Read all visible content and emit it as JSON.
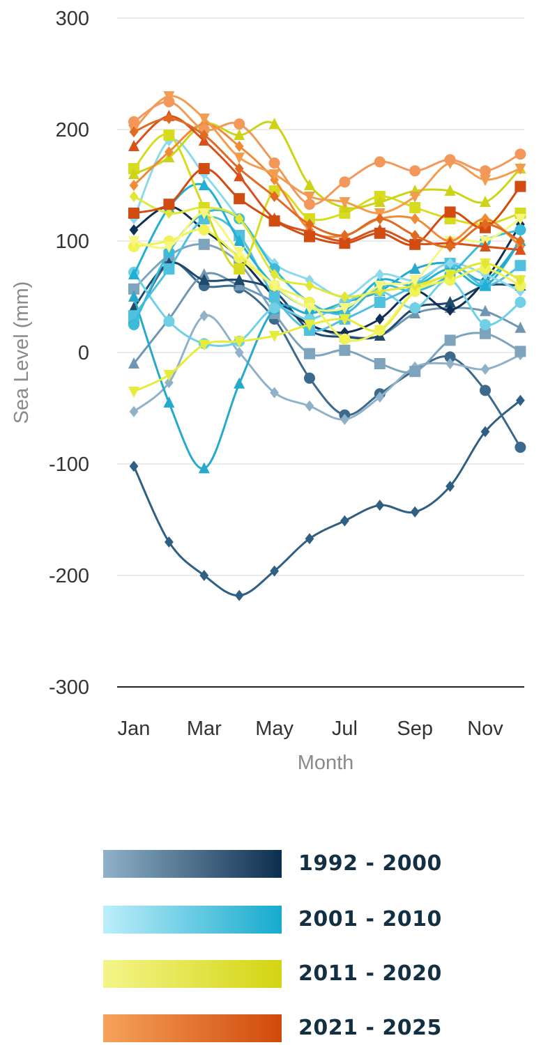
{
  "chart_data": {
    "type": "line",
    "title": "",
    "xlabel": "Month",
    "ylabel": "Sea Level (mm)",
    "ylim": [
      -300,
      300
    ],
    "yticks": [
      "300",
      "200",
      "100",
      "0",
      "-100",
      "-200",
      "-300"
    ],
    "xticks": [
      "Jan",
      "Mar",
      "May",
      "Jul",
      "Sep",
      "Nov"
    ],
    "x": [
      1,
      2,
      3,
      4,
      5,
      6,
      7,
      8,
      9,
      10,
      11,
      12
    ],
    "grid": true,
    "legend_position": "bottom",
    "legend": [
      {
        "label": "1992 - 2000",
        "color_from": "#8fb2c9",
        "color_to": "#0d2f4f"
      },
      {
        "label": "2001 - 2010",
        "color_from": "#bdeefa",
        "color_to": "#16aacd"
      },
      {
        "label": "2011 - 2020",
        "color_from": "#f4f58a",
        "color_to": "#d3d411"
      },
      {
        "label": "2021 - 2025",
        "color_from": "#f5a25a",
        "color_to": "#d04a0a"
      }
    ],
    "series": [
      {
        "values": [
          -102,
          -170,
          -200,
          -218,
          -196,
          -167,
          -151,
          -137,
          -143,
          -120,
          -71,
          -43
        ],
        "color": "#2f5f83",
        "marker": "diamond"
      },
      {
        "values": [
          26,
          80,
          60,
          58,
          30,
          -23,
          -56,
          -37,
          -16,
          -4,
          -34,
          -85
        ],
        "color": "#3b6a8c",
        "marker": "circle"
      },
      {
        "values": [
          -53,
          -27,
          33,
          0,
          -36,
          -48,
          -60,
          -40,
          -13,
          -10,
          -15,
          -2
        ],
        "color": "#8fb2c9",
        "marker": "diamond"
      },
      {
        "values": [
          -10,
          30,
          70,
          60,
          45,
          25,
          15,
          15,
          35,
          40,
          37,
          22
        ],
        "color": "#6f97b3",
        "marker": "triangle"
      },
      {
        "values": [
          57,
          87,
          97,
          80,
          35,
          -1,
          2,
          -10,
          -17,
          11,
          17,
          1
        ],
        "color": "#7ea3bd",
        "marker": "square"
      },
      {
        "values": [
          40,
          80,
          65,
          65,
          55,
          20,
          14,
          15,
          40,
          45,
          60,
          60
        ],
        "color": "#1e4a6e",
        "marker": "triangle"
      },
      {
        "values": [
          110,
          131,
          110,
          85,
          50,
          25,
          18,
          30,
          55,
          38,
          65,
          115
        ],
        "color": "#102f55",
        "marker": "diamond"
      },
      {
        "values": [
          50,
          -45,
          -104,
          -28,
          39,
          35,
          45,
          55,
          75,
          80,
          65,
          100
        ],
        "color": "#25a9cc",
        "marker": "triangle"
      },
      {
        "values": [
          72,
          28,
          8,
          10,
          40,
          30,
          45,
          55,
          40,
          65,
          25,
          45
        ],
        "color": "#6fd0e6",
        "marker": "circle"
      },
      {
        "values": [
          33,
          75,
          120,
          105,
          50,
          20,
          30,
          45,
          60,
          80,
          60,
          78
        ],
        "color": "#4fc1de",
        "marker": "square"
      },
      {
        "values": [
          70,
          130,
          150,
          100,
          60,
          40,
          38,
          65,
          60,
          75,
          60,
          100
        ],
        "color": "#1fb0d3",
        "marker": "triangle"
      },
      {
        "values": [
          120,
          190,
          160,
          120,
          80,
          65,
          50,
          70,
          65,
          80,
          70,
          55
        ],
        "color": "#8ad9ec",
        "marker": "diamond"
      },
      {
        "values": [
          25,
          90,
          125,
          120,
          75,
          45,
          35,
          60,
          55,
          70,
          100,
          110
        ],
        "color": "#3bbad9",
        "marker": "circle"
      },
      {
        "values": [
          -35,
          -20,
          7,
          10,
          15,
          25,
          30,
          20,
          55,
          70,
          80,
          65
        ],
        "color": "#e6ec3a",
        "marker": "tri-down"
      },
      {
        "values": [
          95,
          100,
          110,
          85,
          60,
          45,
          12,
          20,
          55,
          65,
          75,
          60
        ],
        "color": "#f0f255",
        "marker": "circle"
      },
      {
        "values": [
          140,
          125,
          130,
          120,
          70,
          60,
          50,
          55,
          60,
          70,
          80,
          65
        ],
        "color": "#e2e736",
        "marker": "diamond"
      },
      {
        "values": [
          165,
          195,
          130,
          75,
          145,
          120,
          125,
          140,
          130,
          120,
          115,
          125
        ],
        "color": "#d8dc1e",
        "marker": "square"
      },
      {
        "values": [
          160,
          175,
          205,
          195,
          205,
          150,
          130,
          135,
          145,
          145,
          135,
          165
        ],
        "color": "#cdd415",
        "marker": "triangle"
      },
      {
        "values": [
          100,
          95,
          125,
          90,
          60,
          40,
          40,
          60,
          65,
          100,
          100,
          120
        ],
        "color": "#f7f780",
        "marker": "tri-down"
      },
      {
        "values": [
          150,
          180,
          205,
          185,
          155,
          110,
          105,
          120,
          120,
          100,
          120,
          95
        ],
        "color": "#f08a35",
        "marker": "diamond"
      },
      {
        "values": [
          200,
          230,
          210,
          175,
          160,
          140,
          135,
          125,
          140,
          170,
          155,
          165
        ],
        "color": "#f49c4e",
        "marker": "tri-down"
      },
      {
        "values": [
          207,
          225,
          200,
          205,
          170,
          133,
          153,
          171,
          163,
          173,
          163,
          178
        ],
        "color": "#f3985a",
        "marker": "circle"
      },
      {
        "values": [
          185,
          212,
          190,
          158,
          120,
          108,
          100,
          110,
          98,
          98,
          95,
          92
        ],
        "color": "#d9501a",
        "marker": "triangle"
      },
      {
        "values": [
          125,
          133,
          165,
          138,
          118,
          104,
          98,
          107,
          97,
          126,
          112,
          149
        ],
        "color": "#d24c12",
        "marker": "square"
      },
      {
        "values": [
          198,
          210,
          195,
          165,
          140,
          115,
          105,
          120,
          105,
          95,
          115,
          100
        ],
        "color": "#e06a22",
        "marker": "diamond"
      }
    ]
  }
}
